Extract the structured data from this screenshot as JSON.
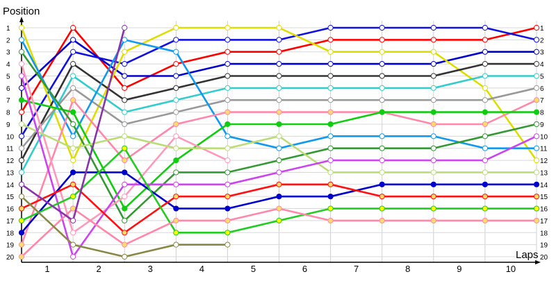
{
  "chart_data": {
    "type": "line",
    "title": "",
    "ylabel": "Position",
    "xlabel": "Laps",
    "x_ticks": [
      1,
      2,
      3,
      4,
      5,
      6,
      7,
      8,
      9,
      10
    ],
    "y_ticks": [
      1,
      2,
      3,
      4,
      5,
      6,
      7,
      8,
      9,
      10,
      11,
      12,
      13,
      14,
      15,
      16,
      17,
      18,
      19,
      20
    ],
    "xlim": [
      0,
      10
    ],
    "ylim": [
      1,
      20
    ],
    "grid": true,
    "y_inverted": true,
    "legend": "none",
    "series": [
      {
        "color": "#ff0000",
        "marker": "#ffffff",
        "values": [
          [
            0,
            8
          ],
          [
            1,
            1
          ],
          [
            2,
            6
          ],
          [
            3,
            4
          ],
          [
            4,
            3
          ],
          [
            5,
            3
          ],
          [
            6,
            2
          ],
          [
            7,
            2
          ],
          [
            8,
            2
          ],
          [
            9,
            2
          ],
          [
            10,
            1
          ]
        ]
      },
      {
        "color": "#0000cc",
        "marker": "#ffffff",
        "values": [
          [
            0,
            6
          ],
          [
            1,
            2
          ],
          [
            2,
            5
          ],
          [
            3,
            5
          ],
          [
            4,
            4
          ],
          [
            5,
            4
          ],
          [
            6,
            4
          ],
          [
            7,
            4
          ],
          [
            8,
            4
          ],
          [
            9,
            3
          ],
          [
            10,
            3
          ]
        ]
      },
      {
        "color": "#1010e0",
        "marker": "#ffffff",
        "values": [
          [
            0,
            10
          ],
          [
            1,
            3
          ],
          [
            2,
            4
          ],
          [
            3,
            2
          ],
          [
            4,
            2
          ],
          [
            5,
            2
          ],
          [
            6,
            1
          ],
          [
            7,
            1
          ],
          [
            8,
            1
          ],
          [
            9,
            1
          ],
          [
            10,
            2
          ]
        ]
      },
      {
        "color": "#dddd00",
        "marker": "#ffffff",
        "values": [
          [
            0,
            1
          ],
          [
            1,
            12
          ],
          [
            2,
            3
          ],
          [
            3,
            1
          ],
          [
            4,
            1
          ],
          [
            5,
            1
          ],
          [
            6,
            3
          ],
          [
            7,
            3
          ],
          [
            8,
            3
          ],
          [
            9,
            6
          ],
          [
            10,
            12
          ]
        ]
      },
      {
        "color": "#333333",
        "marker": "#ffffff",
        "values": [
          [
            0,
            12
          ],
          [
            1,
            4
          ],
          [
            2,
            7
          ],
          [
            3,
            6
          ],
          [
            4,
            5
          ],
          [
            5,
            5
          ],
          [
            6,
            5
          ],
          [
            7,
            5
          ],
          [
            8,
            5
          ],
          [
            9,
            4
          ],
          [
            10,
            4
          ]
        ]
      },
      {
        "color": "#33cccc",
        "marker": "#ffffff",
        "values": [
          [
            0,
            13
          ],
          [
            1,
            5
          ],
          [
            2,
            8
          ],
          [
            3,
            7
          ],
          [
            4,
            6
          ],
          [
            5,
            6
          ],
          [
            6,
            6
          ],
          [
            7,
            6
          ],
          [
            8,
            6
          ],
          [
            9,
            5
          ],
          [
            10,
            5
          ]
        ]
      },
      {
        "color": "#999999",
        "marker": "#ffffff",
        "values": [
          [
            0,
            11
          ],
          [
            1,
            6
          ],
          [
            2,
            9
          ],
          [
            3,
            8
          ],
          [
            4,
            7
          ],
          [
            5,
            7
          ],
          [
            6,
            7
          ],
          [
            7,
            7
          ],
          [
            8,
            7
          ],
          [
            9,
            7
          ],
          [
            10,
            6
          ]
        ]
      },
      {
        "color": "#1199ee",
        "marker": "#ffffff",
        "values": [
          [
            0,
            2
          ],
          [
            1,
            10
          ],
          [
            2,
            2
          ],
          [
            3,
            3
          ],
          [
            4,
            10
          ],
          [
            5,
            11
          ],
          [
            6,
            10
          ],
          [
            7,
            10
          ],
          [
            8,
            10
          ],
          [
            9,
            11
          ],
          [
            10,
            11
          ]
        ]
      },
      {
        "color": "#ff88aa",
        "marker": "#ffdd66",
        "values": [
          [
            0,
            19
          ],
          [
            1,
            7
          ],
          [
            2,
            12
          ],
          [
            3,
            9
          ],
          [
            4,
            8
          ],
          [
            5,
            8
          ],
          [
            6,
            8
          ],
          [
            7,
            8
          ],
          [
            8,
            9
          ],
          [
            9,
            9
          ],
          [
            10,
            7
          ]
        ]
      },
      {
        "color": "#11cc11",
        "marker": "#11cc11",
        "values": [
          [
            0,
            7
          ],
          [
            1,
            8
          ],
          [
            2,
            16
          ],
          [
            3,
            12
          ],
          [
            4,
            9
          ],
          [
            5,
            9
          ],
          [
            6,
            9
          ],
          [
            7,
            8
          ],
          [
            8,
            8
          ],
          [
            9,
            8
          ],
          [
            10,
            8
          ]
        ]
      },
      {
        "color": "#339933",
        "marker": "#ffffff",
        "values": [
          [
            0,
            3
          ],
          [
            1,
            9
          ],
          [
            2,
            17
          ],
          [
            3,
            13
          ],
          [
            4,
            13
          ],
          [
            5,
            12
          ],
          [
            6,
            11
          ],
          [
            7,
            11
          ],
          [
            8,
            11
          ],
          [
            9,
            10
          ],
          [
            10,
            9
          ]
        ]
      },
      {
        "color": "#ff99bb",
        "marker": "#ffffff",
        "values": [
          [
            0,
            4
          ],
          [
            1,
            18
          ],
          [
            2,
            15
          ],
          [
            3,
            10
          ],
          [
            4,
            12
          ]
        ]
      },
      {
        "color": "#bbdd77",
        "marker": "#ffffff",
        "values": [
          [
            0,
            9
          ],
          [
            1,
            11
          ],
          [
            2,
            10
          ],
          [
            3,
            11
          ],
          [
            4,
            11
          ],
          [
            5,
            10
          ],
          [
            6,
            13
          ],
          [
            7,
            13
          ],
          [
            8,
            13
          ],
          [
            9,
            13
          ],
          [
            10,
            13
          ]
        ]
      },
      {
        "color": "#cc44ee",
        "marker": "#ffffff",
        "values": [
          [
            0,
            5
          ],
          [
            1,
            20
          ],
          [
            2,
            14
          ],
          [
            3,
            14
          ],
          [
            4,
            14
          ],
          [
            5,
            13
          ],
          [
            6,
            12
          ],
          [
            7,
            12
          ],
          [
            8,
            12
          ],
          [
            9,
            12
          ],
          [
            10,
            10
          ]
        ]
      },
      {
        "color": "#0000cc",
        "marker": "#0000cc",
        "values": [
          [
            0,
            18
          ],
          [
            1,
            13
          ],
          [
            2,
            13
          ],
          [
            3,
            16
          ],
          [
            4,
            16
          ],
          [
            5,
            15
          ],
          [
            6,
            15
          ],
          [
            7,
            14
          ],
          [
            8,
            14
          ],
          [
            9,
            14
          ],
          [
            10,
            14
          ]
        ]
      },
      {
        "color": "#ff1111",
        "marker": "#ffdd66",
        "values": [
          [
            0,
            16
          ],
          [
            1,
            14
          ],
          [
            2,
            18
          ],
          [
            3,
            15
          ],
          [
            4,
            15
          ],
          [
            5,
            14
          ],
          [
            6,
            14
          ],
          [
            7,
            15
          ],
          [
            8,
            15
          ],
          [
            9,
            15
          ],
          [
            10,
            15
          ]
        ]
      },
      {
        "color": "#22cc22",
        "marker": "#ffff00",
        "values": [
          [
            0,
            17
          ],
          [
            1,
            15
          ],
          [
            2,
            11
          ],
          [
            3,
            18
          ],
          [
            4,
            18
          ],
          [
            5,
            17
          ],
          [
            6,
            16
          ],
          [
            7,
            16
          ],
          [
            8,
            16
          ],
          [
            9,
            16
          ],
          [
            10,
            16
          ]
        ]
      },
      {
        "color": "#ff88aa",
        "marker": "#ffdd66",
        "values": [
          [
            0,
            20
          ],
          [
            1,
            16
          ],
          [
            2,
            19
          ],
          [
            3,
            17
          ],
          [
            4,
            17
          ],
          [
            5,
            16
          ],
          [
            6,
            17
          ],
          [
            7,
            17
          ],
          [
            8,
            17
          ],
          [
            9,
            17
          ],
          [
            10,
            17
          ]
        ]
      },
      {
        "color": "#888844",
        "marker": "#ffffff",
        "values": [
          [
            0,
            15
          ],
          [
            1,
            19
          ],
          [
            2,
            20
          ],
          [
            3,
            19
          ],
          [
            4,
            19
          ]
        ]
      },
      {
        "color": "#8833aa",
        "marker": "#ffffff",
        "values": [
          [
            0,
            14
          ],
          [
            1,
            17
          ],
          [
            2,
            1
          ]
        ]
      }
    ]
  }
}
